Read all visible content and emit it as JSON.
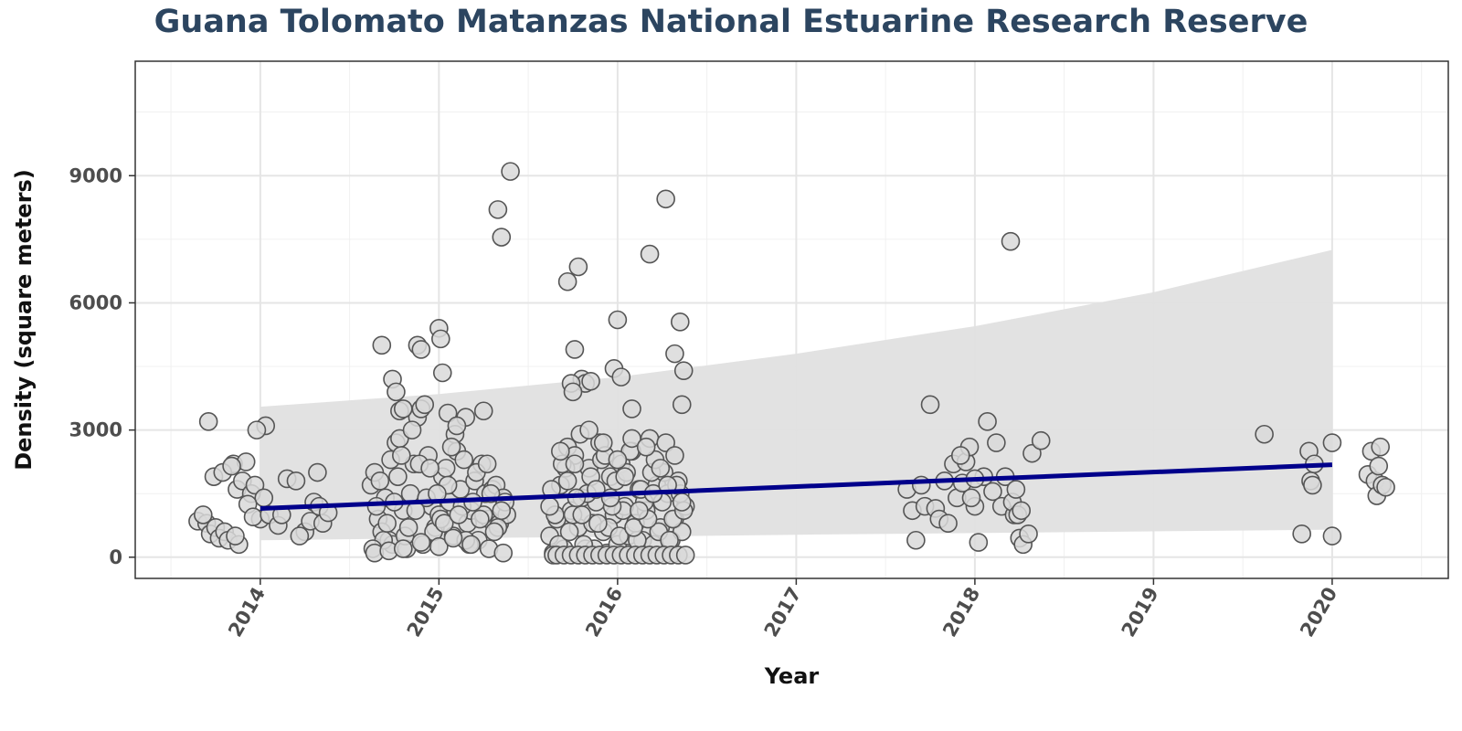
{
  "chart_data": {
    "type": "scatter",
    "title": "Guana Tolomato Matanzas National Estuarine Research Reserve",
    "xlabel": "Year",
    "ylabel": "Density (square meters)",
    "x_ticks": [
      "2014",
      "2015",
      "2016",
      "2017",
      "2018",
      "2019",
      "2020"
    ],
    "y_ticks": [
      "0",
      "3000",
      "6000",
      "9000"
    ],
    "xlim": [
      2013.3,
      2020.65
    ],
    "ylim": [
      -500,
      11700
    ],
    "grid": true,
    "colors": {
      "title": "#2c4560",
      "trend": "#00008b",
      "band": "#e0e0e0",
      "point_fill": "#d9d9d9",
      "point_stroke": "#555555"
    },
    "trend_line": {
      "x": [
        2014.0,
        2020.0
      ],
      "y": [
        1150,
        2180
      ]
    },
    "confidence_band": {
      "x": [
        2014.0,
        2015.0,
        2016.0,
        2017.0,
        2018.0,
        2019.0,
        2020.0
      ],
      "upper": [
        3550,
        3850,
        4250,
        4800,
        5450,
        6250,
        7250
      ],
      "lower": [
        400,
        450,
        480,
        530,
        570,
        610,
        650
      ]
    },
    "series": [
      {
        "x": [
          2013.65,
          2013.7,
          2013.72,
          2013.75,
          2013.77,
          2013.8,
          2013.82,
          2013.85,
          2013.87,
          2013.9,
          2013.92,
          2013.95,
          2013.97,
          2014.0,
          2014.02,
          2013.68,
          2013.74,
          2013.79,
          2013.84,
          2013.88,
          2013.93,
          2013.96,
          2014.03,
          2013.71,
          2013.86,
          2013.98,
          2014.05,
          2014.1,
          2014.15,
          2014.2,
          2014.25,
          2014.28,
          2014.3,
          2014.33,
          2014.35,
          2014.38,
          2014.12,
          2014.22,
          2014.32,
          2014.62,
          2014.64,
          2014.66,
          2014.68,
          2014.7,
          2014.72,
          2014.74,
          2014.76,
          2014.78,
          2014.8,
          2014.82,
          2014.84,
          2014.86,
          2014.88,
          2014.9,
          2014.92,
          2014.94,
          2014.96,
          2014.98,
          2015.0,
          2015.02,
          2015.04,
          2015.06,
          2015.08,
          2015.1,
          2015.12,
          2015.14,
          2015.16,
          2015.18,
          2015.2,
          2015.22,
          2015.24,
          2015.26,
          2015.28,
          2015.3,
          2015.32,
          2015.34,
          2015.36,
          2015.38,
          2014.65,
          2014.69,
          2014.73,
          2014.77,
          2014.81,
          2014.85,
          2014.89,
          2014.93,
          2014.97,
          2015.01,
          2015.05,
          2015.09,
          2015.13,
          2015.17,
          2015.21,
          2015.25,
          2015.29,
          2015.33,
          2015.37,
          2014.63,
          2014.67,
          2014.71,
          2014.75,
          2014.79,
          2014.83,
          2014.87,
          2014.91,
          2014.95,
          2014.99,
          2015.03,
          2015.07,
          2015.11,
          2015.15,
          2015.19,
          2015.23,
          2015.27,
          2015.31,
          2015.35,
          2014.68,
          2014.88,
          2014.74,
          2014.76,
          2014.78,
          2014.8,
          2015.0,
          2015.01,
          2015.02,
          2015.25,
          2015.33,
          2015.35,
          2015.4,
          2014.9,
          2015.05,
          2015.15,
          2015.1,
          2014.64,
          2014.72,
          2014.8,
          2014.9,
          2015.0,
          2015.08,
          2015.18,
          2015.28,
          2015.36,
          2015.62,
          2015.64,
          2015.66,
          2015.68,
          2015.7,
          2015.72,
          2015.74,
          2015.76,
          2015.78,
          2015.8,
          2015.82,
          2015.84,
          2015.86,
          2015.88,
          2015.9,
          2015.92,
          2015.94,
          2015.96,
          2015.98,
          2016.0,
          2016.02,
          2016.04,
          2016.06,
          2016.08,
          2016.1,
          2016.12,
          2016.14,
          2016.16,
          2016.18,
          2016.2,
          2016.22,
          2016.24,
          2016.26,
          2016.28,
          2016.3,
          2016.32,
          2016.34,
          2016.36,
          2016.38,
          2015.63,
          2015.67,
          2015.71,
          2015.75,
          2015.79,
          2015.83,
          2015.87,
          2015.91,
          2015.95,
          2015.99,
          2016.03,
          2016.07,
          2016.11,
          2016.15,
          2016.19,
          2016.23,
          2016.27,
          2016.31,
          2016.35,
          2015.65,
          2015.69,
          2015.73,
          2015.77,
          2015.81,
          2015.85,
          2015.89,
          2015.93,
          2015.97,
          2016.01,
          2016.05,
          2016.09,
          2016.13,
          2016.17,
          2016.21,
          2016.25,
          2016.29,
          2016.33,
          2016.37,
          2015.64,
          2015.66,
          2015.7,
          2015.74,
          2015.78,
          2015.82,
          2015.86,
          2015.9,
          2015.94,
          2015.98,
          2016.02,
          2016.06,
          2016.1,
          2016.14,
          2016.18,
          2016.22,
          2016.26,
          2016.3,
          2016.34,
          2016.38,
          2015.72,
          2015.76,
          2015.78,
          2015.8,
          2015.82,
          2015.85,
          2015.98,
          2016.0,
          2016.18,
          2016.27,
          2016.32,
          2016.36,
          2016.37,
          2016.35,
          2016.02,
          2016.08,
          2015.74,
          2015.75,
          2015.62,
          2015.68,
          2015.72,
          2015.76,
          2015.8,
          2015.84,
          2015.88,
          2015.92,
          2015.96,
          2016.0,
          2016.04,
          2016.08,
          2016.12,
          2016.16,
          2016.2,
          2016.24,
          2016.28,
          2016.32,
          2016.36,
          2017.62,
          2017.65,
          2017.67,
          2017.7,
          2017.72,
          2017.75,
          2017.78,
          2017.8,
          2017.83,
          2017.85,
          2017.88,
          2017.9,
          2017.93,
          2017.95,
          2017.97,
          2018.0,
          2018.02,
          2018.05,
          2018.07,
          2018.1,
          2018.12,
          2018.15,
          2018.17,
          2018.2,
          2018.22,
          2018.25,
          2018.27,
          2018.3,
          2018.32,
          2018.37,
          2017.98,
          2018.0,
          2018.21,
          2018.23,
          2018.24,
          2018.26,
          2017.92,
          2019.62,
          2019.83,
          2019.87,
          2019.88,
          2019.89,
          2019.9,
          2020.0,
          2020.0,
          2020.2,
          2020.22,
          2020.24,
          2020.25,
          2020.26,
          2020.27,
          2020.28,
          2020.3
        ],
        "y": [
          850,
          800,
          550,
          700,
          450,
          600,
          400,
          2200,
          1600,
          1800,
          2250,
          1500,
          1700,
          900,
          1400,
          1000,
          1900,
          2000,
          2150,
          300,
          1250,
          950,
          3100,
          3200,
          500,
          3000,
          1000,
          750,
          1850,
          1800,
          600,
          850,
          1300,
          1200,
          800,
          1050,
          1000,
          500,
          2000,
          1700,
          2000,
          900,
          600,
          1400,
          400,
          300,
          2700,
          2800,
          1100,
          200,
          1500,
          2200,
          3300,
          3500,
          3600,
          2400,
          1200,
          700,
          1000,
          1900,
          2100,
          1300,
          500,
          2500,
          1600,
          2300,
          800,
          1100,
          1800,
          400,
          2200,
          1500,
          900,
          1600,
          1700,
          800,
          1400,
          1000,
          1200,
          400,
          2300,
          1900,
          500,
          3000,
          2200,
          1400,
          600,
          900,
          1700,
          2900,
          1200,
          300,
          2000,
          1000,
          1500,
          700,
          1300,
          200,
          1800,
          800,
          1300,
          2400,
          700,
          1100,
          300,
          2100,
          1500,
          800,
          2600,
          1000,
          400,
          1300,
          900,
          2200,
          600,
          1100,
          5000,
          5000,
          4200,
          3900,
          3450,
          3500,
          5400,
          5150,
          4350,
          3450,
          8200,
          7550,
          9100,
          4900,
          3400,
          3300,
          3100,
          100,
          150,
          200,
          350,
          250,
          450,
          300,
          200,
          100,
          500,
          100,
          900,
          1700,
          200,
          2600,
          1100,
          2400,
          700,
          1400,
          200,
          2100,
          800,
          1300,
          2700,
          600,
          100,
          1900,
          1000,
          300,
          2200,
          1200,
          500,
          2500,
          800,
          1600,
          400,
          1100,
          2800,
          300,
          1700,
          700,
          2000,
          1500,
          400,
          900,
          1800,
          600,
          1200,
          1600,
          300,
          2100,
          1000,
          2900,
          1500,
          200,
          2300,
          700,
          1800,
          1100,
          2500,
          400,
          1300,
          2000,
          600,
          2700,
          900,
          1500,
          1000,
          2200,
          600,
          1400,
          300,
          1900,
          800,
          2400,
          1200,
          500,
          2000,
          700,
          1600,
          900,
          2300,
          1300,
          400,
          1700,
          1100,
          50,
          50,
          50,
          50,
          50,
          50,
          50,
          50,
          50,
          50,
          50,
          50,
          50,
          50,
          50,
          50,
          50,
          50,
          50,
          50,
          6500,
          4900,
          6850,
          4200,
          4100,
          4150,
          4450,
          5600,
          7150,
          8450,
          4800,
          3600,
          4400,
          5550,
          4250,
          3500,
          4100,
          3900,
          1200,
          2500,
          1800,
          2200,
          1000,
          3000,
          1600,
          2700,
          1400,
          2300,
          1900,
          2800,
          1100,
          2600,
          1500,
          2100,
          1700,
          2400,
          1300,
          1600,
          1100,
          400,
          1700,
          1200,
          3600,
          1150,
          900,
          1800,
          800,
          2200,
          1400,
          1750,
          2250,
          2600,
          1200,
          350,
          1900,
          3200,
          1550,
          2700,
          1200,
          1900,
          7450,
          1000,
          450,
          300,
          550,
          2450,
          2750,
          1400,
          1850,
          1300,
          1600,
          1000,
          1100,
          2400,
          2900,
          550,
          2500,
          1800,
          1700,
          2200,
          2700,
          500,
          1950,
          2500,
          1800,
          1450,
          2150,
          2600,
          1700,
          1650
        ]
      }
    ]
  }
}
